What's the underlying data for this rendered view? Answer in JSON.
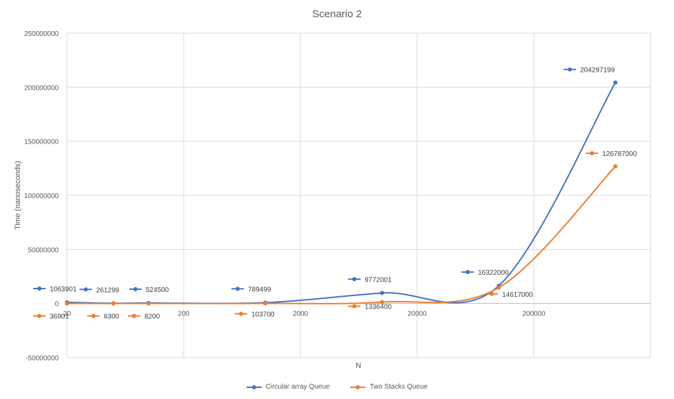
{
  "chart_data": {
    "type": "line",
    "title": "Scenario 2",
    "xlabel": "N",
    "ylabel": "Time (nanoseconds)",
    "x_scale": "log",
    "x_ticks": [
      "20",
      "200",
      "2000",
      "20000",
      "200000"
    ],
    "y_ticks": [
      "250000000",
      "200000000",
      "150000000",
      "100000000",
      "50000000",
      "0",
      "-50000000"
    ],
    "ylim": [
      -50000000,
      250000000
    ],
    "grid": true,
    "legend_position": "bottom",
    "x": [
      20,
      50,
      100,
      1000,
      10000,
      100000,
      1000000
    ],
    "series": [
      {
        "name": "Circular array Queue",
        "color": "#4472C4",
        "values": [
          1063901,
          261299,
          524500,
          789499,
          9772001,
          16322000,
          204297199
        ],
        "labels": [
          "1063901",
          "261299",
          "524500",
          "789499",
          "9772001",
          "16322000",
          "204297199"
        ]
      },
      {
        "name": "Two Stacks Queue",
        "color": "#ED7D31",
        "values": [
          36901,
          6300,
          8200,
          103700,
          1336400,
          14617000,
          126787000
        ],
        "labels": [
          "36901",
          "6300",
          "8200",
          "103700",
          "1336400",
          "14617000",
          "126787000"
        ]
      }
    ]
  }
}
